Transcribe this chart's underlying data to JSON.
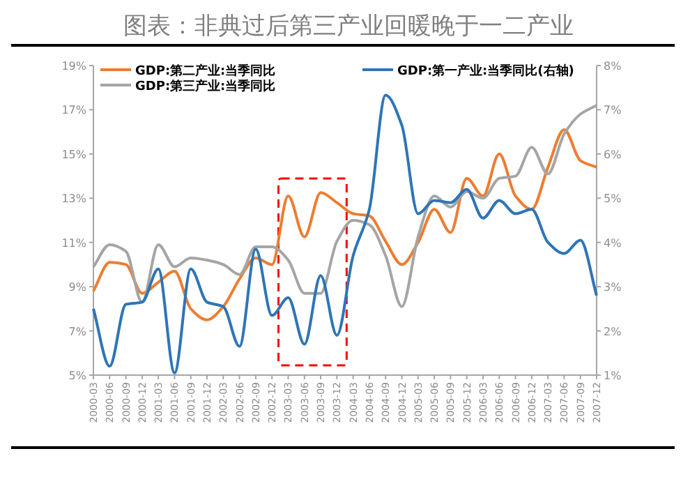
{
  "chart_data": {
    "type": "line",
    "title": "图表：非典过后第三产业回暖晚于一二产业",
    "categories": [
      "2000-03",
      "2000-06",
      "2000-09",
      "2000-12",
      "2001-03",
      "2001-06",
      "2001-09",
      "2001-12",
      "2002-03",
      "2002-06",
      "2002-09",
      "2002-12",
      "2003-03",
      "2003-06",
      "2003-09",
      "2003-12",
      "2004-03",
      "2004-06",
      "2004-09",
      "2004-12",
      "2005-03",
      "2005-06",
      "2005-09",
      "2005-12",
      "2006-03",
      "2006-06",
      "2006-09",
      "2006-12",
      "2007-03",
      "2007-06",
      "2007-09",
      "2007-12"
    ],
    "series": [
      {
        "name": "GDP:第二产业:当季同比",
        "color": "#ed7d31",
        "values": [
          8.8,
          10.1,
          10.0,
          8.7,
          9.2,
          9.7,
          8.0,
          7.5,
          8.1,
          9.35,
          10.3,
          10.0,
          13.1,
          11.25,
          13.25,
          12.8,
          12.3,
          12.2,
          11.05,
          10.0,
          11.0,
          12.5,
          11.45,
          13.9,
          13.1,
          15.0,
          13.1,
          12.5,
          14.4,
          16.1,
          14.7,
          14.4
        ]
      },
      {
        "name": "GDP:第三产业:当季同比",
        "color": "#a5a5a5",
        "values": [
          9.9,
          10.9,
          10.6,
          8.3,
          10.9,
          9.9,
          10.3,
          10.2,
          10.0,
          9.55,
          10.8,
          10.8,
          10.2,
          8.7,
          8.7,
          11.05,
          12.0,
          11.8,
          10.4,
          8.1,
          11.25,
          13.1,
          12.6,
          13.3,
          13.0,
          13.9,
          14.0,
          15.3,
          14.1,
          15.9,
          16.8,
          17.2
        ]
      },
      {
        "name": "GDP:第一产业:当季同比(右轴)",
        "color": "#2e75b6",
        "axis": "y2",
        "values": [
          2.5,
          1.2,
          2.6,
          2.65,
          3.4,
          1.05,
          3.4,
          2.65,
          2.55,
          1.65,
          3.85,
          2.35,
          2.75,
          1.7,
          3.25,
          1.9,
          3.7,
          4.75,
          7.33,
          6.65,
          4.65,
          4.95,
          4.9,
          5.2,
          4.55,
          4.95,
          4.65,
          4.75,
          4.0,
          3.75,
          4.05,
          2.8
        ]
      }
    ],
    "ylim": [
      5,
      19
    ],
    "yticks": [
      {
        "value": 5,
        "label": "5%"
      },
      {
        "value": 7,
        "label": "7%"
      },
      {
        "value": 9,
        "label": "9%"
      },
      {
        "value": 11,
        "label": "11%"
      },
      {
        "value": 13,
        "label": "13%"
      },
      {
        "value": 15,
        "label": "15%"
      },
      {
        "value": 17,
        "label": "17%"
      },
      {
        "value": 19,
        "label": "19%"
      }
    ],
    "y2lim": [
      1,
      8
    ],
    "y2ticks": [
      {
        "value": 1,
        "label": "1%"
      },
      {
        "value": 2,
        "label": "2%"
      },
      {
        "value": 3,
        "label": "3%"
      },
      {
        "value": 4,
        "label": "4%"
      },
      {
        "value": 5,
        "label": "5%"
      },
      {
        "value": 6,
        "label": "6%"
      },
      {
        "value": 7,
        "label": "7%"
      },
      {
        "value": 8,
        "label": "8%"
      }
    ],
    "legend": "top",
    "grid": false,
    "marker": "none",
    "line_style": "solid"
  }
}
